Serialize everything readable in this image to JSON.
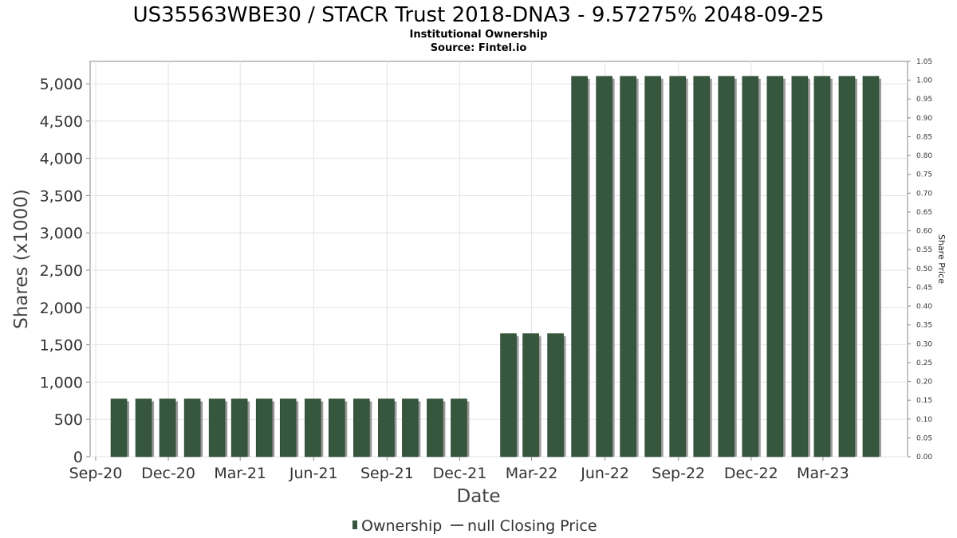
{
  "chart_data": {
    "type": "bar",
    "title": "US35563WBE30 / STACR Trust 2018-DNA3 - 9.57275% 2048-09-25",
    "subtitle_lines": [
      "Institutional Ownership",
      "Source: Fintel.io"
    ],
    "xlabel": "Date",
    "ylabel": "Shares (x1000)",
    "y2label": "Share Price",
    "x_tick_labels": [
      "Sep-20",
      "Dec-20",
      "Mar-21",
      "Jun-21",
      "Sep-21",
      "Dec-21",
      "Mar-22",
      "Jun-22",
      "Sep-22",
      "Dec-22",
      "Mar-23"
    ],
    "x_range": [
      "2020-08-25",
      "2023-06-15"
    ],
    "ylim": [
      0,
      5300
    ],
    "y_ticks": [
      0,
      500,
      1000,
      1500,
      2000,
      2500,
      3000,
      3500,
      4000,
      4500,
      5000
    ],
    "y_tick_labels": [
      "0",
      "500",
      "1,000",
      "1,500",
      "2,000",
      "2,500",
      "3,000",
      "3,500",
      "4,000",
      "4,500",
      "5,000"
    ],
    "y2lim": [
      0,
      1.05
    ],
    "y2_tick_labels": [
      "0.00",
      "0.05",
      "0.10",
      "0.15",
      "0.20",
      "0.25",
      "0.30",
      "0.35",
      "0.40",
      "0.45",
      "0.50",
      "0.55",
      "0.60",
      "0.65",
      "0.70",
      "0.75",
      "0.80",
      "0.85",
      "0.90",
      "0.95",
      "1.00",
      "1.05"
    ],
    "grid": true,
    "legend_position": "bottom-center",
    "legend_entries": [
      "Ownership",
      "null Closing Price"
    ],
    "series": [
      {
        "name": "Ownership",
        "color": "#36573d",
        "points": [
          {
            "x": "2020-09-30",
            "y": 775
          },
          {
            "x": "2020-10-31",
            "y": 775
          },
          {
            "x": "2020-11-30",
            "y": 775
          },
          {
            "x": "2020-12-31",
            "y": 775
          },
          {
            "x": "2021-01-31",
            "y": 775
          },
          {
            "x": "2021-02-28",
            "y": 775
          },
          {
            "x": "2021-03-31",
            "y": 775
          },
          {
            "x": "2021-04-30",
            "y": 775
          },
          {
            "x": "2021-05-31",
            "y": 775
          },
          {
            "x": "2021-06-30",
            "y": 775
          },
          {
            "x": "2021-07-31",
            "y": 775
          },
          {
            "x": "2021-08-31",
            "y": 775
          },
          {
            "x": "2021-09-30",
            "y": 775
          },
          {
            "x": "2021-10-31",
            "y": 775
          },
          {
            "x": "2021-11-30",
            "y": 775
          },
          {
            "x": "2022-01-31",
            "y": 1650
          },
          {
            "x": "2022-02-28",
            "y": 1650
          },
          {
            "x": "2022-03-31",
            "y": 1650
          },
          {
            "x": "2022-04-30",
            "y": 5100
          },
          {
            "x": "2022-05-31",
            "y": 5100
          },
          {
            "x": "2022-06-30",
            "y": 5100
          },
          {
            "x": "2022-07-31",
            "y": 5100
          },
          {
            "x": "2022-08-31",
            "y": 5100
          },
          {
            "x": "2022-09-30",
            "y": 5100
          },
          {
            "x": "2022-10-31",
            "y": 5100
          },
          {
            "x": "2022-11-30",
            "y": 5100
          },
          {
            "x": "2022-12-31",
            "y": 5100
          },
          {
            "x": "2023-01-31",
            "y": 5100
          },
          {
            "x": "2023-02-28",
            "y": 5100
          },
          {
            "x": "2023-03-31",
            "y": 5100
          },
          {
            "x": "2023-04-30",
            "y": 5100
          }
        ]
      },
      {
        "name": "null Closing Price",
        "color": "#555555",
        "points": []
      }
    ]
  }
}
